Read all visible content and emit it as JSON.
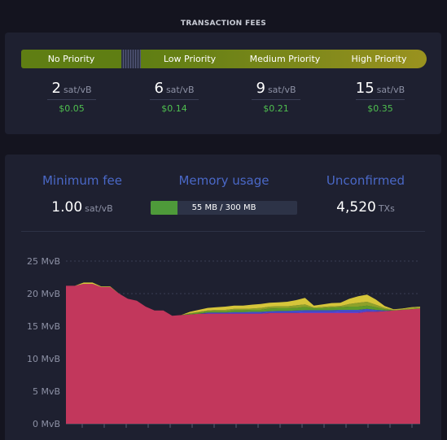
{
  "fees": {
    "title": "TRANSACTION FEES",
    "priorities": [
      {
        "label": "No Priority"
      },
      {
        "label": "Low Priority",
        "value": "6",
        "unit": "sat/vB",
        "usd": "$0.14"
      },
      {
        "label": "Medium Priority",
        "value": "9",
        "unit": "sat/vB",
        "usd": "$0.21"
      },
      {
        "label": "High Priority",
        "value": "15",
        "unit": "sat/vB",
        "usd": "$0.35"
      }
    ],
    "none_estimate": {
      "value": "2",
      "unit": "sat/vB",
      "usd": "$0.05"
    }
  },
  "stats": {
    "min_fee": {
      "label": "Minimum fee",
      "value": "1.00",
      "unit": "sat/vB"
    },
    "memory": {
      "label": "Memory usage",
      "text": "55 MB / 300 MB",
      "used_mb": 55,
      "total_mb": 300
    },
    "unconfirmed": {
      "label": "Unconfirmed",
      "value": "4,520",
      "unit": "TXs"
    }
  },
  "colors": {
    "base_area": "#c2375c",
    "purple": "#6a3fd0",
    "blue": "#3f52c8",
    "green": "#5f9a2a",
    "olive": "#8ea12a",
    "yellow": "#d6c53a",
    "accent": "#4a68c7"
  },
  "chart_data": {
    "type": "area",
    "yticks": [
      "25 MvB",
      "20 MvB",
      "15 MvB",
      "10 MvB",
      "5 MvB",
      "0 MvB"
    ],
    "ylim": [
      0,
      25
    ],
    "x": [
      0,
      1,
      2,
      3,
      4,
      5,
      6,
      7,
      8,
      9,
      10,
      11,
      12,
      13,
      14,
      15,
      16,
      17,
      18,
      19,
      20,
      21,
      22,
      23,
      24,
      25,
      26,
      27,
      28,
      29,
      30,
      31,
      32,
      33,
      34,
      35,
      36,
      37,
      38,
      39,
      40
    ],
    "series": [
      {
        "values": [
          21.2,
          21.2,
          21.5,
          21.5,
          21.0,
          21.0,
          20.0,
          19.2,
          18.9,
          18.0,
          17.4,
          17.4,
          16.6,
          16.7,
          16.8,
          16.9,
          16.9,
          16.9,
          16.9,
          16.9,
          16.9,
          16.9,
          16.9,
          17.0,
          17.0,
          17.0,
          17.0,
          17.0,
          17.0,
          17.0,
          17.0,
          17.0,
          17.0,
          17.0,
          17.2,
          17.2,
          17.3,
          17.4,
          17.5,
          17.6,
          17.7
        ]
      },
      {
        "values": [
          0,
          0,
          0,
          0,
          0,
          0,
          0,
          0,
          0,
          0,
          0,
          0,
          0,
          0,
          0,
          0,
          0.1,
          0.1,
          0.1,
          0.1,
          0.1,
          0.1,
          0.1,
          0.1,
          0.1,
          0.1,
          0.1,
          0.15,
          0.15,
          0.15,
          0.15,
          0.2,
          0.2,
          0.2,
          0.15,
          0.1,
          0,
          0,
          0,
          0,
          0
        ]
      },
      {
        "values": [
          0,
          0,
          0,
          0,
          0,
          0,
          0,
          0,
          0,
          0,
          0,
          0,
          0,
          0,
          0,
          0,
          0.1,
          0.1,
          0.1,
          0.15,
          0.15,
          0.2,
          0.2,
          0.2,
          0.25,
          0.25,
          0.3,
          0.3,
          0.3,
          0.3,
          0.3,
          0.3,
          0.3,
          0.3,
          0.3,
          0.2,
          0.1,
          0,
          0,
          0,
          0
        ]
      },
      {
        "values": [
          0,
          0,
          0,
          0,
          0,
          0,
          0,
          0,
          0,
          0,
          0,
          0,
          0,
          0,
          0.1,
          0.2,
          0.2,
          0.2,
          0.2,
          0.3,
          0.3,
          0.3,
          0.3,
          0.4,
          0.4,
          0.4,
          0.4,
          0.5,
          0.3,
          0.3,
          0.4,
          0.4,
          0.5,
          0.5,
          0.5,
          0.4,
          0.2,
          0,
          0,
          0,
          0
        ]
      },
      {
        "values": [
          0,
          0,
          0,
          0,
          0,
          0,
          0,
          0,
          0,
          0,
          0,
          0,
          0,
          0,
          0.1,
          0.1,
          0.1,
          0.2,
          0.2,
          0.2,
          0.2,
          0.2,
          0.3,
          0.3,
          0.3,
          0.3,
          0.4,
          0.4,
          0.1,
          0.2,
          0.2,
          0.2,
          0.4,
          0.6,
          0.6,
          0.4,
          0.2,
          0.1,
          0.1,
          0.2,
          0.2
        ]
      },
      {
        "values": [
          0,
          0,
          0.2,
          0.2,
          0.1,
          0.1,
          0,
          0,
          0,
          0,
          0,
          0,
          0,
          0,
          0.2,
          0.3,
          0.4,
          0.4,
          0.5,
          0.5,
          0.5,
          0.6,
          0.6,
          0.6,
          0.6,
          0.7,
          0.8,
          1.0,
          0.3,
          0.4,
          0.5,
          0.5,
          0.8,
          1.0,
          1.1,
          0.8,
          0.3,
          0.1,
          0.1,
          0.1,
          0.1
        ]
      }
    ]
  }
}
